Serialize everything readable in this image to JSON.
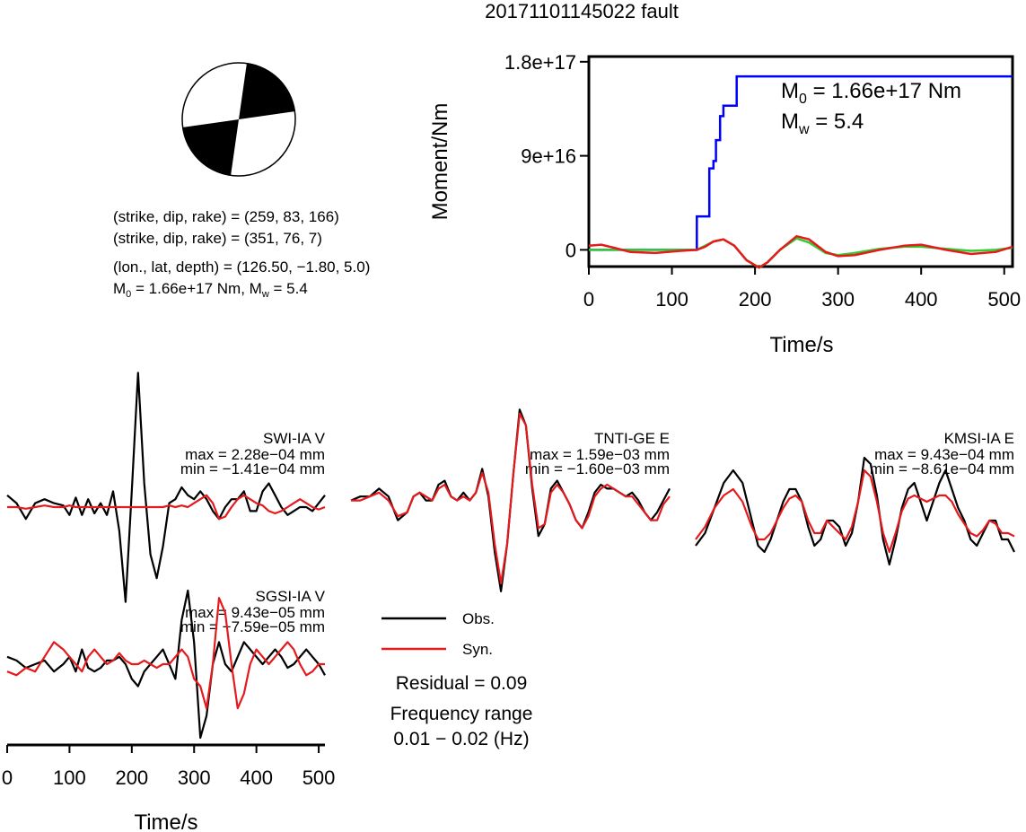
{
  "title": "20171101145022 fault",
  "mechanism": {
    "planes": [
      "(strike, dip, rake) = (259, 83, 166)",
      "(strike, dip, rake) = (351, 76, 7)"
    ],
    "location": "(lon., lat, depth) = (126.50, −1.80, 5.0)",
    "m0_prefix": "M",
    "m0_sub": "0",
    "m0_value": " = 1.66e+17 Nm, M",
    "mw_sub": "w",
    "mw_value": " = 5.4"
  },
  "moment_annotation": {
    "m0_prefix": "M",
    "m0_sub": "0",
    "m0_value": " = 1.66e+17 Nm",
    "mw_prefix": "M",
    "mw_sub": "w",
    "mw_value": " = 5.4"
  },
  "legend": {
    "obs": "Obs.",
    "syn": "Syn."
  },
  "residual": "Residual = 0.09",
  "frequency_label": "Frequency range",
  "frequency_value": "0.01 − 0.02 (Hz)",
  "colors": {
    "obs": "#000000",
    "syn": "#e41a1c",
    "moment": "#0000ff",
    "moment_syn": "#33cc33"
  },
  "chart_data": [
    {
      "type": "line",
      "xlabel": "Time/s",
      "ylabel": "Moment/Nm",
      "xlim": [
        0,
        510
      ],
      "ylim": [
        -1.6e+16,
        1.85e+17
      ],
      "xticks": [
        0,
        100,
        200,
        300,
        400,
        500
      ],
      "yticks": [
        {
          "value": 0,
          "label": "0"
        },
        {
          "value": 9e+16,
          "label": "9e+16"
        },
        {
          "value": 1.8e+17,
          "label": "1.8e+17"
        }
      ],
      "series": [
        {
          "color": "#0000ff",
          "x": [
            0,
            130,
            130,
            145,
            145,
            150,
            150,
            153,
            153,
            158,
            158,
            162,
            162,
            168,
            168,
            178,
            178,
            510
          ],
          "y": [
            0,
            0,
            3.2e+16,
            3.2e+16,
            7.8e+16,
            7.8e+16,
            8.5e+16,
            8.5e+16,
            1.05e+17,
            1.05e+17,
            1.28e+17,
            1.28e+17,
            1.38e+17,
            1.38e+17,
            1.38e+17,
            1.38e+17,
            1.66e+17,
            1.66e+17
          ]
        },
        {
          "color": "#33cc33",
          "x": [
            0,
            20,
            50,
            100,
            130,
            140,
            150,
            162,
            175,
            190,
            205,
            215,
            230,
            250,
            265,
            285,
            300,
            320,
            350,
            380,
            400,
            430,
            460,
            490,
            510
          ],
          "y": [
            0,
            0,
            0,
            0,
            0,
            4000000000000000.0,
            8000000000000000.0,
            1e+16,
            4000000000000000.0,
            -1e+16,
            -1.7e+16,
            -1.2e+16,
            0,
            1.1e+16,
            7000000000000000.0,
            -3000000000000000.0,
            -5000000000000000.0,
            -3000000000000000.0,
            1000000000000000.0,
            3000000000000000.0,
            3000000000000000.0,
            1000000000000000.0,
            -1000000000000000.0,
            0,
            2000000000000000.0
          ]
        },
        {
          "color": "#e41a1c",
          "x": [
            0,
            15,
            30,
            50,
            80,
            110,
            130,
            140,
            150,
            162,
            175,
            190,
            205,
            215,
            230,
            250,
            265,
            285,
            300,
            320,
            350,
            380,
            400,
            430,
            460,
            490,
            510
          ],
          "y": [
            4000000000000000.0,
            5000000000000000.0,
            2000000000000000.0,
            -2000000000000000.0,
            -3000000000000000.0,
            -1000000000000000.0,
            0,
            3000000000000000.0,
            8000000000000000.0,
            1e+16,
            4000000000000000.0,
            -1e+16,
            -1.7e+16,
            -1.2e+16,
            0,
            1.3e+16,
            1e+16,
            -2000000000000000.0,
            -6000000000000000.0,
            -5000000000000000.0,
            0,
            4000000000000000.0,
            5000000000000000.0,
            0,
            -4000000000000000.0,
            -2000000000000000.0,
            3000000000000000.0
          ]
        }
      ]
    },
    {
      "type": "line",
      "name": "SWI-IA V",
      "max_label": "max = 2.28e−04 mm",
      "min_label": "min = −1.41e−04 mm",
      "x": [
        0,
        15,
        30,
        45,
        60,
        75,
        90,
        100,
        110,
        120,
        130,
        140,
        150,
        160,
        170,
        180,
        190,
        200,
        210,
        220,
        230,
        240,
        250,
        260,
        270,
        280,
        290,
        300,
        310,
        320,
        330,
        340,
        350,
        360,
        370,
        380,
        390,
        400,
        410,
        420,
        430,
        440,
        450,
        460,
        470,
        480,
        490,
        500,
        510
      ],
      "obs": [
        0.15,
        0.05,
        -0.15,
        0.05,
        0.1,
        0.05,
        0.02,
        -0.1,
        0.12,
        -0.1,
        0.1,
        -0.08,
        0.05,
        -0.1,
        0.2,
        -0.3,
        -1.2,
        0.2,
        1.7,
        0.3,
        -0.6,
        -0.9,
        -0.5,
        0.05,
        0.1,
        0.25,
        0.15,
        0.1,
        0.2,
        0.1,
        -0.05,
        -0.15,
        0,
        0.1,
        0.1,
        0.2,
        -0.05,
        -0.05,
        0.2,
        0.3,
        0.15,
        0,
        -0.1,
        -0.05,
        0.0,
        0,
        -0.05,
        0.05,
        0.15
      ],
      "syn": [
        0,
        0,
        -0.02,
        0,
        0.02,
        0,
        0,
        0.02,
        0,
        0,
        0,
        0,
        0,
        0,
        0,
        0,
        0,
        0,
        0,
        0,
        0,
        0,
        0,
        0.02,
        0,
        0.02,
        0,
        0.05,
        0.1,
        0.15,
        0.05,
        -0.15,
        -0.12,
        0,
        0.1,
        0.15,
        0.1,
        0.05,
        0.02,
        -0.05,
        -0.08,
        -0.05,
        0,
        0.05,
        0.1,
        0.05,
        0,
        -0.03,
        0
      ]
    },
    {
      "type": "line",
      "name": "TNTI-GE E",
      "max_label": "max = 1.59e−03 mm",
      "min_label": "min = −1.60e−03 mm",
      "x": [
        0,
        15,
        30,
        45,
        60,
        75,
        90,
        100,
        110,
        120,
        130,
        140,
        150,
        160,
        170,
        180,
        190,
        200,
        210,
        220,
        230,
        240,
        250,
        260,
        270,
        280,
        290,
        300,
        310,
        320,
        330,
        340,
        350,
        360,
        370,
        380,
        390,
        400,
        410,
        420,
        430,
        440,
        450,
        460,
        470,
        480,
        490,
        500,
        510
      ],
      "obs": [
        0.05,
        0.1,
        0.1,
        0.2,
        0.1,
        -0.2,
        -0.1,
        0.1,
        0.15,
        0.05,
        0.05,
        0.25,
        0.3,
        0.1,
        0.05,
        0.15,
        0.05,
        0.15,
        0.45,
        0.1,
        -0.6,
        -1.1,
        -0.5,
        0.4,
        1.2,
        1.0,
        0.2,
        -0.4,
        -0.25,
        0.2,
        0.3,
        0.15,
        0.0,
        -0.2,
        -0.3,
        -0.1,
        0.15,
        0.25,
        0.2,
        0.2,
        0.15,
        0.1,
        0.15,
        0.05,
        -0.1,
        -0.2,
        -0.1,
        0.05,
        0.2
      ],
      "syn": [
        0.05,
        0.05,
        0.1,
        0.15,
        0.05,
        -0.15,
        -0.1,
        0.1,
        0.15,
        0.1,
        0.05,
        0.2,
        0.25,
        0.1,
        0.05,
        0.1,
        0.05,
        0.15,
        0.4,
        0.15,
        -0.5,
        -1.0,
        -0.5,
        0.4,
        1.15,
        1.0,
        0.25,
        -0.3,
        -0.25,
        0.15,
        0.25,
        0.15,
        0.0,
        -0.2,
        -0.3,
        -0.15,
        0.1,
        0.2,
        0.25,
        0.2,
        0.15,
        0.1,
        0.1,
        0.0,
        -0.1,
        -0.2,
        -0.2,
        0.0,
        0.1
      ]
    },
    {
      "type": "line",
      "name": "KMSI-IA E",
      "max_label": "max = 9.43e−04 mm",
      "min_label": "min = −8.61e−04 mm",
      "x": [
        0,
        15,
        30,
        45,
        60,
        75,
        90,
        100,
        110,
        120,
        130,
        140,
        150,
        160,
        170,
        180,
        190,
        200,
        210,
        220,
        230,
        240,
        250,
        260,
        270,
        280,
        290,
        300,
        310,
        320,
        330,
        340,
        350,
        360,
        370,
        380,
        390,
        400,
        410,
        420,
        430,
        440,
        450,
        460,
        470,
        480,
        490,
        500,
        510
      ],
      "obs": [
        -0.4,
        -0.2,
        0.2,
        0.6,
        0.8,
        0.6,
        0.0,
        -0.4,
        -0.5,
        -0.3,
        0.0,
        0.3,
        0.5,
        0.5,
        0.3,
        -0.1,
        -0.4,
        -0.3,
        0.0,
        0.0,
        -0.1,
        -0.4,
        -0.2,
        0.3,
        1.0,
        0.9,
        0.4,
        -0.3,
        -0.7,
        -0.3,
        0.2,
        0.5,
        0.6,
        0.3,
        0.0,
        0.3,
        0.6,
        0.8,
        0.5,
        0.2,
        0.0,
        -0.3,
        -0.4,
        -0.2,
        0.0,
        0.0,
        -0.3,
        -0.3,
        -0.5
      ],
      "syn": [
        -0.3,
        -0.1,
        0.2,
        0.4,
        0.5,
        0.3,
        -0.1,
        -0.3,
        -0.3,
        -0.2,
        0.0,
        0.2,
        0.35,
        0.4,
        0.3,
        0.0,
        -0.2,
        -0.2,
        0.0,
        -0.1,
        -0.2,
        -0.3,
        -0.1,
        0.3,
        0.8,
        0.7,
        0.3,
        -0.2,
        -0.5,
        -0.2,
        0.15,
        0.35,
        0.4,
        0.35,
        0.3,
        0.35,
        0.4,
        0.4,
        0.3,
        0.1,
        -0.05,
        -0.2,
        -0.25,
        -0.15,
        0.0,
        -0.05,
        -0.2,
        -0.2,
        -0.25
      ]
    },
    {
      "type": "line",
      "name": "SGSI-IA V",
      "max_label": "max = 9.43e−05 mm",
      "min_label": "min = −7.59e−05 mm",
      "xlabel": "Time/s",
      "xlim": [
        0,
        510
      ],
      "xticks": [
        0,
        100,
        200,
        300,
        400,
        500
      ],
      "x": [
        0,
        15,
        30,
        45,
        60,
        75,
        90,
        100,
        110,
        120,
        130,
        140,
        150,
        160,
        170,
        180,
        190,
        200,
        210,
        220,
        230,
        240,
        250,
        260,
        270,
        280,
        290,
        300,
        310,
        320,
        330,
        340,
        350,
        360,
        370,
        380,
        390,
        400,
        410,
        420,
        430,
        440,
        450,
        460,
        470,
        480,
        490,
        500,
        510
      ],
      "obs": [
        0.1,
        0.05,
        -0.05,
        0.0,
        0.05,
        -0.1,
        0.0,
        0.1,
        -0.1,
        0.2,
        -0.05,
        -0.1,
        -0.05,
        0.05,
        0.05,
        0.1,
        0.0,
        -0.2,
        -0.3,
        -0.1,
        0.0,
        0.1,
        0.2,
        0.0,
        -0.2,
        0.6,
        1.0,
        0.3,
        -1.0,
        -0.7,
        0.0,
        0.3,
        0.0,
        -0.1,
        0.1,
        0.3,
        0.2,
        0.1,
        0.0,
        0.1,
        0.2,
        0.1,
        -0.05,
        0.0,
        0.1,
        0.2,
        0.1,
        0.0,
        -0.15
      ],
      "syn": [
        -0.1,
        -0.15,
        -0.05,
        -0.1,
        0.1,
        0.3,
        0.2,
        0.1,
        0.0,
        -0.1,
        0.1,
        0.2,
        0.1,
        0.0,
        0.05,
        0.15,
        0.05,
        0.0,
        0.0,
        0.05,
        0.0,
        -0.05,
        0.0,
        0.0,
        0.1,
        0.2,
        0.1,
        -0.2,
        -0.3,
        -0.6,
        0.0,
        0.9,
        0.7,
        0.0,
        -0.6,
        -0.4,
        0.0,
        0.2,
        0.1,
        0.0,
        0.1,
        0.2,
        0.3,
        0.2,
        0.0,
        -0.15,
        -0.1,
        0.0,
        0.0
      ]
    }
  ]
}
